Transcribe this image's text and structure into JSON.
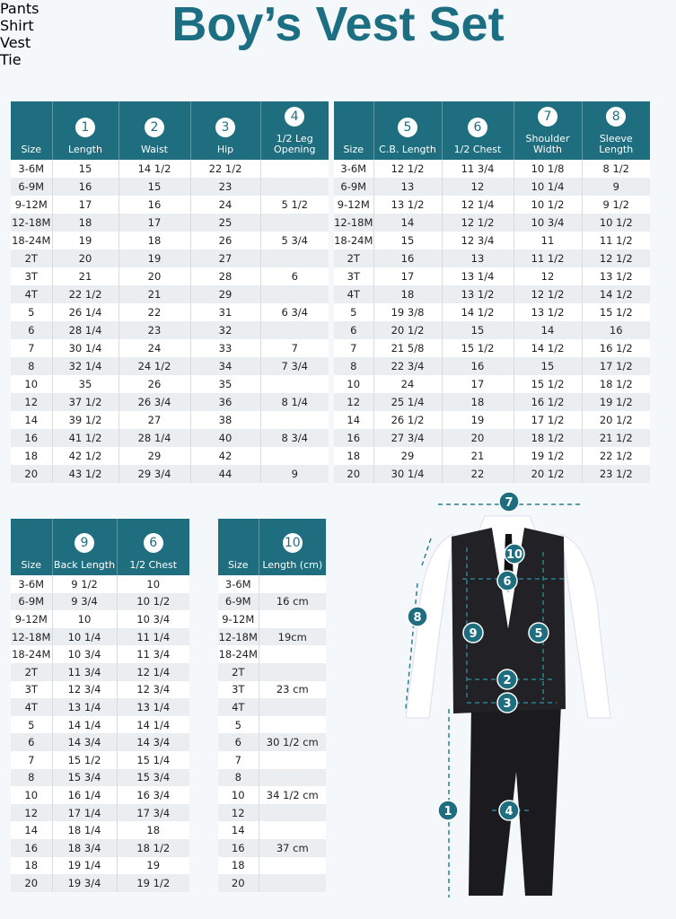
{
  "title": "Boy’s Vest Set",
  "tables": [
    {
      "title": "Pants",
      "numbers": [
        "1",
        "2",
        "3",
        "4"
      ],
      "headers": [
        "Size",
        "Length",
        "Waist",
        "Hip",
        "1/2 Leg Opening"
      ],
      "rows": [
        [
          "3-6M",
          "15",
          "14 1/2",
          "22 1/2",
          null
        ],
        [
          "6-9M",
          "16",
          "15",
          "23",
          null
        ],
        [
          "9-12M",
          "17",
          "16",
          "24",
          "5 1/2"
        ],
        [
          "12-18M",
          "18",
          "17",
          "25",
          null
        ],
        [
          "18-24M",
          "19",
          "18",
          "26",
          "5 3/4"
        ],
        [
          "2T",
          "20",
          "19",
          "27",
          null
        ],
        [
          "3T",
          "21",
          "20",
          "28",
          "6"
        ],
        [
          "4T",
          "22 1/2",
          "21",
          "29",
          null
        ],
        [
          "5",
          "26 1/4",
          "22",
          "31",
          "6 3/4"
        ],
        [
          "6",
          "28 1/4",
          "23",
          "32",
          null
        ],
        [
          "7",
          "30 1/4",
          "24",
          "33",
          "7"
        ],
        [
          "8",
          "32 1/4",
          "24 1/2",
          "34",
          "7 3/4"
        ],
        [
          "10",
          "35",
          "26",
          "35",
          null
        ],
        [
          "12",
          "37 1/2",
          "26 3/4",
          "36",
          "8 1/4"
        ],
        [
          "14",
          "39 1/2",
          "27",
          "38",
          null
        ],
        [
          "16",
          "41 1/2",
          "28 1/4",
          "40",
          "8 3/4"
        ],
        [
          "18",
          "42 1/2",
          "29",
          "42",
          null
        ],
        [
          "20",
          "43 1/2",
          "29 3/4",
          "44",
          "9"
        ]
      ]
    },
    {
      "title": "Shirt",
      "numbers": [
        "5",
        "6",
        "7",
        "8"
      ],
      "headers": [
        "Size",
        "C.B. Length",
        "1/2 Chest",
        "Shoulder Width",
        "Sleeve Length"
      ],
      "rows": [
        [
          "3-6M",
          "12 1/2",
          "11 3/4",
          "10 1/8",
          "8 1/2"
        ],
        [
          "6-9M",
          "13",
          "12",
          "10 1/4",
          "9"
        ],
        [
          "9-12M",
          "13 1/2",
          "12 1/4",
          "10 1/2",
          "9 1/2"
        ],
        [
          "12-18M",
          "14",
          "12 1/2",
          "10 3/4",
          "10 1/2"
        ],
        [
          "18-24M",
          "15",
          "12 3/4",
          "11",
          "11 1/2"
        ],
        [
          "2T",
          "16",
          "13",
          "11 1/2",
          "12 1/2"
        ],
        [
          "3T",
          "17",
          "13 1/4",
          "12",
          "13 1/2"
        ],
        [
          "4T",
          "18",
          "13 1/2",
          "12 1/2",
          "14 1/2"
        ],
        [
          "5",
          "19 3/8",
          "14 1/2",
          "13 1/2",
          "15 1/2"
        ],
        [
          "6",
          "20 1/2",
          "15",
          "14",
          "16"
        ],
        [
          "7",
          "21 5/8",
          "15 1/2",
          "14 1/2",
          "16 1/2"
        ],
        [
          "8",
          "22 3/4",
          "16",
          "15",
          "17 1/2"
        ],
        [
          "10",
          "24",
          "17",
          "15 1/2",
          "18 1/2"
        ],
        [
          "12",
          "25 1/4",
          "18",
          "16 1/2",
          "19 1/2"
        ],
        [
          "14",
          "26 1/2",
          "19",
          "17 1/2",
          "20 1/2"
        ],
        [
          "16",
          "27 3/4",
          "20",
          "18 1/2",
          "21 1/2"
        ],
        [
          "18",
          "29",
          "21",
          "19 1/2",
          "22 1/2"
        ],
        [
          "20",
          "30 1/4",
          "22",
          "20 1/2",
          "23 1/2"
        ]
      ]
    },
    {
      "title": "Vest",
      "numbers": [
        "9",
        "6"
      ],
      "headers": [
        "Size",
        "Back Length",
        "1/2 Chest"
      ],
      "rows": [
        [
          "3-6M",
          "9 1/2",
          "10"
        ],
        [
          "6-9M",
          "9 3/4",
          "10 1/2"
        ],
        [
          "9-12M",
          "10",
          "10 3/4"
        ],
        [
          "12-18M",
          "10 1/4",
          "11 1/4"
        ],
        [
          "18-24M",
          "10 3/4",
          "11 3/4"
        ],
        [
          "2T",
          "11 3/4",
          "12 1/4"
        ],
        [
          "3T",
          "12 3/4",
          "12 3/4"
        ],
        [
          "4T",
          "13 1/4",
          "13 1/4"
        ],
        [
          "5",
          "14 1/4",
          "14 1/4"
        ],
        [
          "6",
          "14 3/4",
          "14 3/4"
        ],
        [
          "7",
          "15 1/2",
          "15 1/4"
        ],
        [
          "8",
          "15 3/4",
          "15 3/4"
        ],
        [
          "10",
          "16 1/4",
          "16 3/4"
        ],
        [
          "12",
          "17 1/4",
          "17 3/4"
        ],
        [
          "14",
          "18 1/4",
          "18"
        ],
        [
          "16",
          "18 3/4",
          "18 1/2"
        ],
        [
          "18",
          "19 1/4",
          "19"
        ],
        [
          "20",
          "19 3/4",
          "19 1/2"
        ]
      ]
    },
    {
      "title": "Tie",
      "numbers": [
        "10"
      ],
      "headers": [
        "Size",
        "Length (cm)"
      ],
      "rows": [
        [
          "3-6M",
          null
        ],
        [
          "6-9M",
          "16 cm"
        ],
        [
          "9-12M",
          null
        ],
        [
          "12-18M",
          "19cm"
        ],
        [
          "18-24M",
          null
        ],
        [
          "2T",
          null
        ],
        [
          "3T",
          "23 cm"
        ],
        [
          "4T",
          null
        ],
        [
          "5",
          null
        ],
        [
          "6",
          "30 1/2 cm"
        ],
        [
          "7",
          null
        ],
        [
          "8",
          null
        ],
        [
          "10",
          "34 1/2 cm"
        ],
        [
          "12",
          null
        ],
        [
          "14",
          null
        ],
        [
          "16",
          "37 cm"
        ],
        [
          "18",
          null
        ],
        [
          "20",
          null
        ]
      ]
    }
  ],
  "diagram": {
    "markers": [
      "7",
      "10",
      "6",
      "8",
      "9",
      "5",
      "2",
      "3",
      "1",
      "4"
    ]
  }
}
